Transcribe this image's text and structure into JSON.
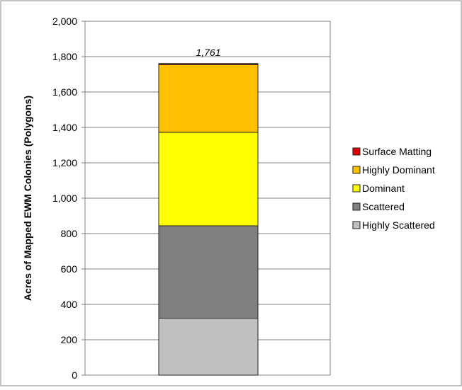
{
  "chart_data": {
    "type": "bar",
    "stacked": true,
    "categories": [
      ""
    ],
    "series": [
      {
        "name": "Highly Scattered",
        "values": [
          322
        ],
        "color": "#c0c0c0"
      },
      {
        "name": "Scattered",
        "values": [
          522
        ],
        "color": "#808080"
      },
      {
        "name": "Dominant",
        "values": [
          528
        ],
        "color": "#ffff00"
      },
      {
        "name": "Highly Dominant",
        "values": [
          383
        ],
        "color": "#ffc000"
      },
      {
        "name": "Surface Matting",
        "values": [
          6
        ],
        "color": "#e00000"
      }
    ],
    "total_label": "1,761",
    "title": "",
    "xlabel": "",
    "ylabel": "Acres of Mapped EWM Colonies (Polygons)",
    "ylim": [
      0,
      2000
    ],
    "yticks": [
      0,
      200,
      400,
      600,
      800,
      1000,
      1200,
      1400,
      1600,
      1800,
      2000
    ],
    "ytick_labels": [
      "0",
      "200",
      "400",
      "600",
      "800",
      "1,000",
      "1,200",
      "1,400",
      "1,600",
      "1,800",
      "2,000"
    ],
    "grid": true,
    "legend_position": "right",
    "legend_order": [
      "Surface Matting",
      "Highly Dominant",
      "Dominant",
      "Scattered",
      "Highly Scattered"
    ]
  }
}
